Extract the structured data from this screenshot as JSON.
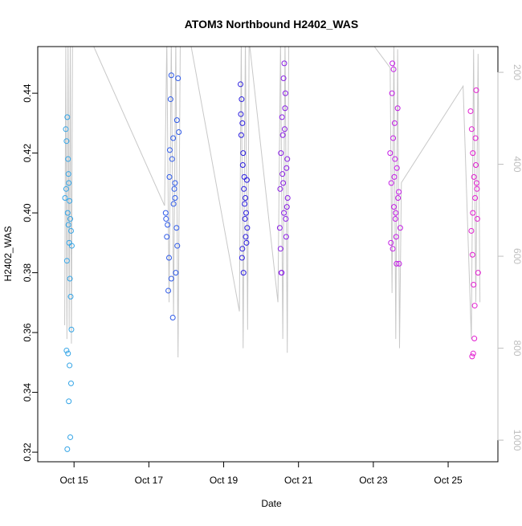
{
  "chart_data": {
    "type": "scatter",
    "title": "ATOM3 Northbound H2402_WAS",
    "x_label": "Date",
    "y_label": "H2402_WAS",
    "xlim": [
      14.03,
      26.33
    ],
    "xticks": [
      {
        "value": 15,
        "label": "Oct 15"
      },
      {
        "value": 17,
        "label": "Oct 17"
      },
      {
        "value": 19,
        "label": "Oct 19"
      },
      {
        "value": 21,
        "label": "Oct 21"
      },
      {
        "value": 23,
        "label": "Oct 23"
      },
      {
        "value": 25,
        "label": "Oct 25"
      }
    ],
    "ylim": [
      0.3168,
      0.4556
    ],
    "yticks": [
      0.32,
      0.34,
      0.36,
      0.38,
      {
        "value": 0.4,
        "label": "0.40"
      },
      0.42,
      0.44
    ],
    "y2lim": [
      1047,
      144
    ],
    "y2ticks": [
      200,
      400,
      600,
      800,
      1000
    ],
    "y2_color": "#bebebe",
    "series": [
      {
        "color": "#33a4e6",
        "x": [
          14.78,
          14.8,
          14.82,
          14.84,
          14.86,
          14.88,
          14.9,
          14.92,
          14.79,
          14.81,
          14.83,
          14.85,
          14.87,
          14.89,
          14.91,
          14.93,
          14.8,
          14.84,
          14.88,
          14.92,
          14.86,
          14.9,
          14.82,
          14.94,
          14.76,
          14.85
        ],
        "values": [
          0.428,
          0.424,
          0.432,
          0.418,
          0.41,
          0.404,
          0.398,
          0.394,
          0.408,
          0.384,
          0.4,
          0.396,
          0.39,
          0.378,
          0.372,
          0.361,
          0.354,
          0.353,
          0.349,
          0.343,
          0.337,
          0.325,
          0.321,
          0.389,
          0.405,
          0.413
        ]
      },
      {
        "color": "#2e5ae8",
        "x": [
          17.45,
          17.5,
          17.55,
          17.6,
          17.65,
          17.7,
          17.75,
          17.8,
          17.48,
          17.52,
          17.58,
          17.62,
          17.68,
          17.72,
          17.78,
          17.46,
          17.54,
          17.64,
          17.74,
          17.56,
          17.66,
          17.76,
          17.6,
          17.7
        ],
        "values": [
          0.4,
          0.396,
          0.412,
          0.446,
          0.425,
          0.405,
          0.431,
          0.427,
          0.392,
          0.374,
          0.438,
          0.418,
          0.408,
          0.38,
          0.445,
          0.398,
          0.385,
          0.365,
          0.395,
          0.421,
          0.403,
          0.389,
          0.378,
          0.41
        ]
      },
      {
        "color": "#2b1de0",
        "x": [
          19.45,
          19.48,
          19.5,
          19.52,
          19.55,
          19.58,
          19.6,
          19.63,
          19.47,
          19.51,
          19.54,
          19.57,
          19.61,
          19.49,
          19.53,
          19.56,
          19.59,
          19.62,
          19.5,
          19.46
        ],
        "values": [
          0.443,
          0.438,
          0.43,
          0.42,
          0.412,
          0.405,
          0.4,
          0.395,
          0.426,
          0.416,
          0.408,
          0.398,
          0.39,
          0.385,
          0.38,
          0.403,
          0.392,
          0.411,
          0.388,
          0.433
        ]
      },
      {
        "color": "#8a1de6",
        "x": [
          20.5,
          20.53,
          20.56,
          20.59,
          20.62,
          20.65,
          20.68,
          20.71,
          20.52,
          20.55,
          20.58,
          20.61,
          20.64,
          20.67,
          20.7,
          20.54,
          20.6,
          20.66,
          20.57,
          20.63,
          20.69,
          20.51
        ],
        "values": [
          0.395,
          0.42,
          0.432,
          0.41,
          0.45,
          0.44,
          0.415,
          0.405,
          0.388,
          0.38,
          0.426,
          0.4,
          0.435,
          0.392,
          0.418,
          0.38,
          0.445,
          0.398,
          0.413,
          0.428,
          0.402,
          0.408
        ]
      },
      {
        "color": "#c41de6",
        "x": [
          23.45,
          23.48,
          23.51,
          23.54,
          23.57,
          23.6,
          23.63,
          23.66,
          23.69,
          23.72,
          23.47,
          23.5,
          23.53,
          23.56,
          23.59,
          23.62,
          23.65,
          23.68,
          23.55,
          23.58,
          23.61,
          23.52
        ],
        "values": [
          0.42,
          0.41,
          0.45,
          0.448,
          0.43,
          0.4,
          0.415,
          0.405,
          0.383,
          0.395,
          0.39,
          0.44,
          0.425,
          0.412,
          0.398,
          0.383,
          0.435,
          0.407,
          0.402,
          0.418,
          0.392,
          0.388
        ]
      },
      {
        "color": "#e21dd0",
        "x": [
          25.6,
          25.63,
          25.66,
          25.69,
          25.72,
          25.75,
          25.78,
          25.8,
          25.62,
          25.65,
          25.68,
          25.71,
          25.74,
          25.77,
          25.64,
          25.67,
          25.7,
          25.73,
          25.66,
          25.76
        ],
        "values": [
          0.434,
          0.428,
          0.42,
          0.412,
          0.405,
          0.441,
          0.398,
          0.38,
          0.394,
          0.386,
          0.376,
          0.369,
          0.416,
          0.408,
          0.352,
          0.353,
          0.358,
          0.425,
          0.4,
          0.41
        ]
      },
      {
        "axis": "y2",
        "kind": "line",
        "color": "#c8c8c8",
        "x": [
          14.75,
          14.78,
          14.81,
          14.84,
          14.87,
          14.9,
          14.93,
          14.96,
          15.45,
          17.42,
          17.48,
          17.54,
          17.6,
          17.66,
          17.72,
          17.78,
          17.84,
          18.1,
          19.42,
          19.47,
          19.52,
          19.58,
          19.64,
          19.68,
          20.45,
          20.52,
          20.58,
          20.64,
          20.7,
          20.74,
          22.9,
          23.45,
          23.5,
          23.55,
          23.6,
          23.65,
          23.7,
          23.75,
          25.4,
          25.62,
          25.68,
          25.74,
          25.8,
          25.85
        ],
        "values": [
          750,
          140,
          780,
          130,
          760,
          130,
          790,
          130,
          130,
          490,
          130,
          700,
          130,
          730,
          130,
          820,
          130,
          130,
          720,
          130,
          800,
          130,
          760,
          130,
          700,
          130,
          780,
          130,
          810,
          130,
          130,
          190,
          680,
          140,
          780,
          150,
          800,
          440,
          230,
          780,
          150,
          700,
          160,
          700
        ]
      }
    ]
  }
}
